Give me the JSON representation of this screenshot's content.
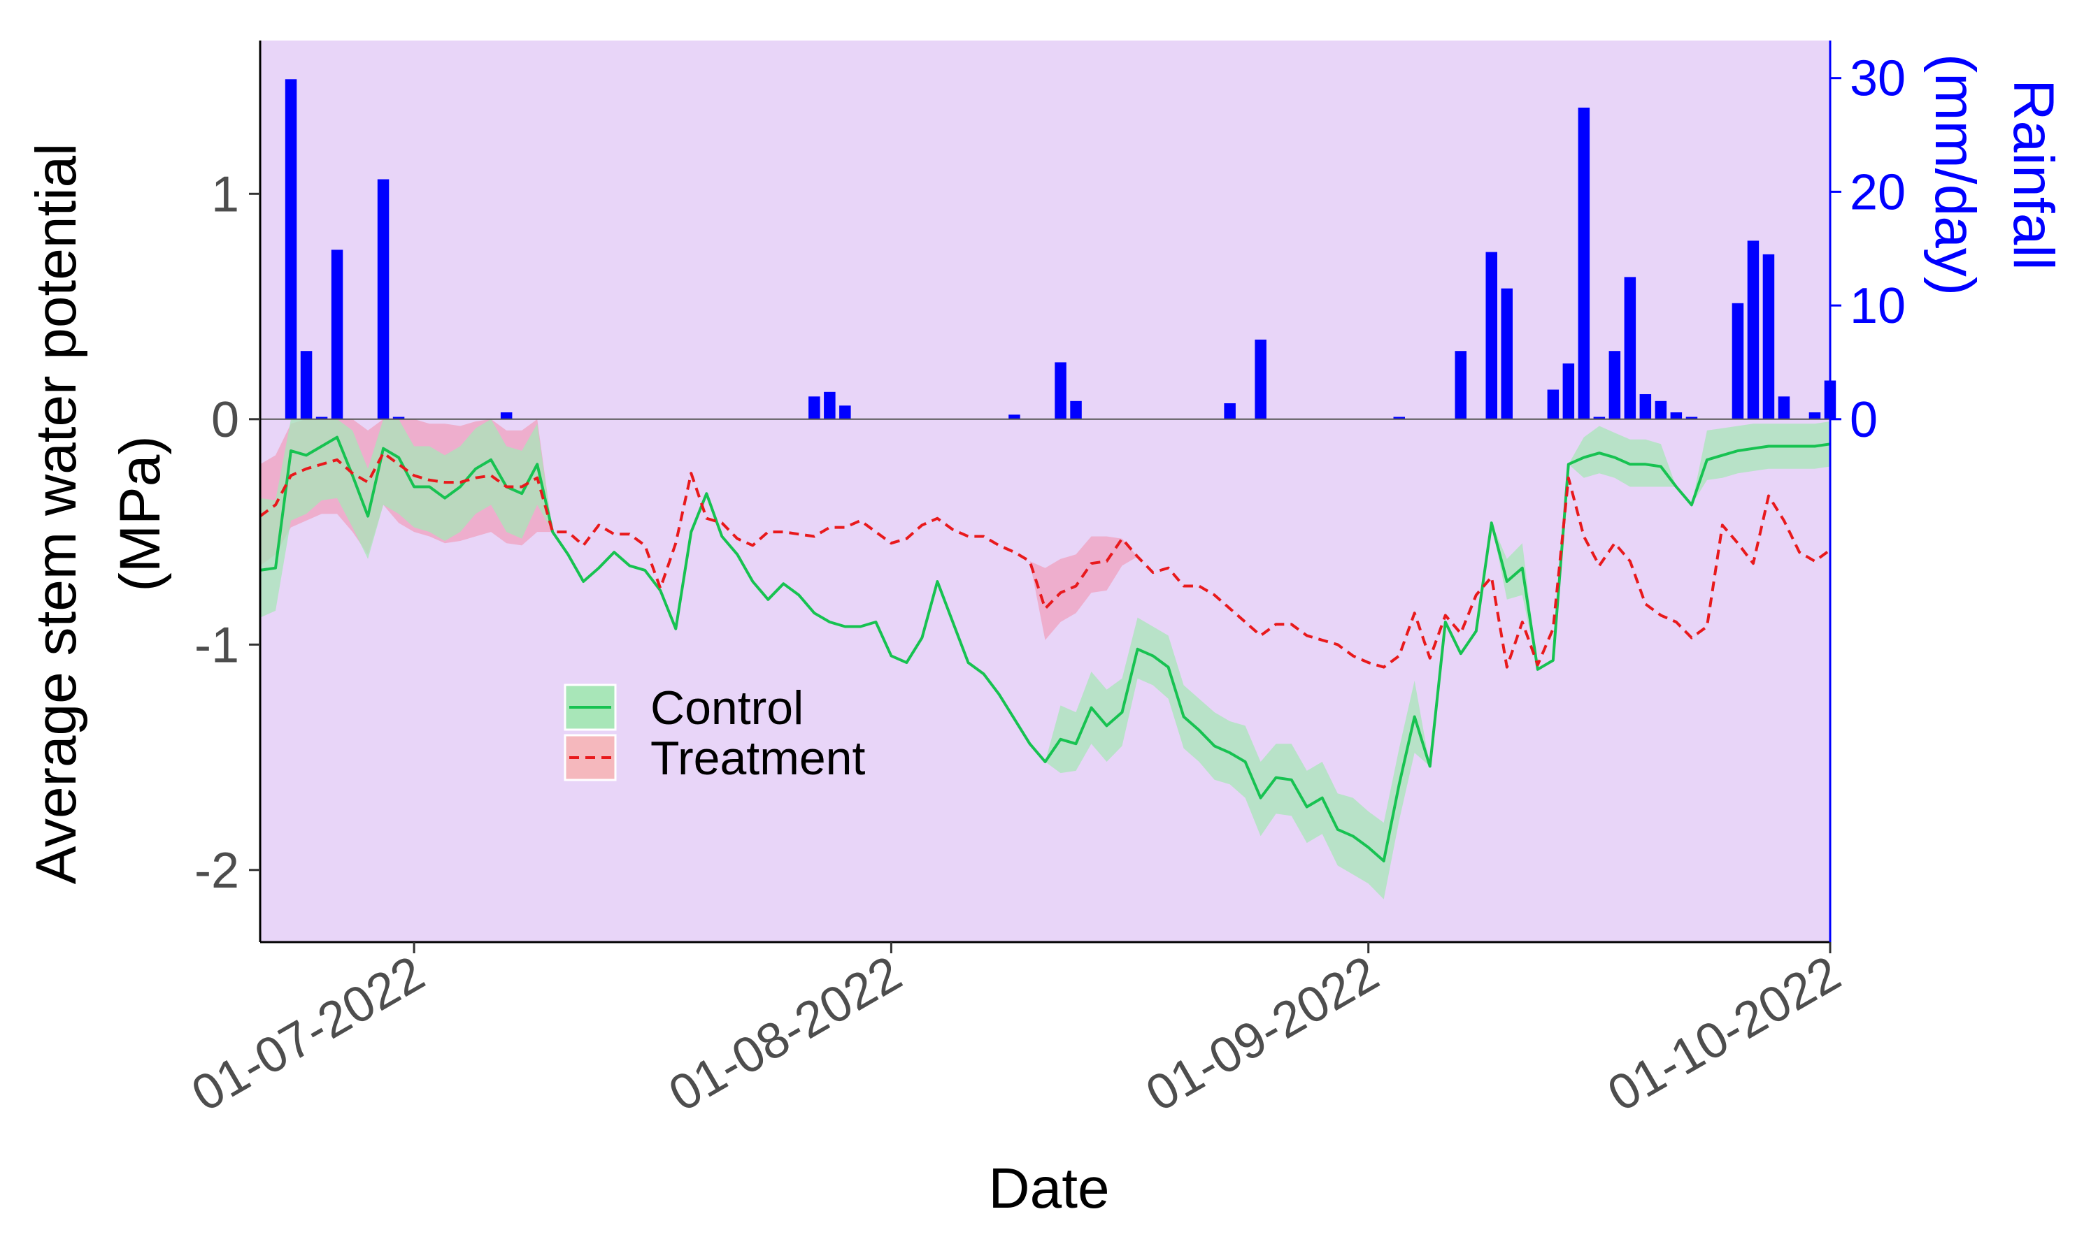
{
  "chart_data": {
    "type": "line",
    "ylabel_lines": [
      "Average stem water potential",
      "(MPa)"
    ],
    "xlabel": "Date",
    "y2label_lines": [
      "Rainfall",
      "(mm/day)"
    ],
    "ylim": [
      -2.32,
      1.68
    ],
    "y2lim": [
      0,
      33.3
    ],
    "xlim": [
      "2022-06-21",
      "2022-10-01"
    ],
    "yticks": [
      1,
      0,
      -1,
      -2
    ],
    "ytick_labels": [
      "1",
      "0",
      "-1",
      "-2"
    ],
    "y2ticks": [
      0,
      10,
      20,
      30
    ],
    "y2tick_labels": [
      "0",
      "10",
      "20",
      "30"
    ],
    "xticks": [
      "2022-07-01",
      "2022-08-01",
      "2022-09-01",
      "2022-10-01"
    ],
    "xtick_labels": [
      "01-07-2022",
      "01-08-2022",
      "01-09-2022",
      "01-10-2022"
    ],
    "grid": false,
    "legend_position": "center-left",
    "colors": {
      "panel_bg": "#e8d5f8",
      "control": "#17c251",
      "control_band": "#a8e6b8",
      "treatment": "#e8191c",
      "treatment_band": "#f294b0",
      "rain": "#0000ff"
    },
    "series": [
      {
        "name": "Control",
        "style": "solid",
        "x": [
          "2022-06-21",
          "2022-06-22",
          "2022-06-23",
          "2022-06-24",
          "2022-06-25",
          "2022-06-26",
          "2022-06-27",
          "2022-06-28",
          "2022-06-29",
          "2022-06-30",
          "2022-07-01",
          "2022-07-02",
          "2022-07-03",
          "2022-07-04",
          "2022-07-05",
          "2022-07-06",
          "2022-07-07",
          "2022-07-08",
          "2022-07-09",
          "2022-07-10",
          "2022-07-11",
          "2022-07-12",
          "2022-07-13",
          "2022-07-14",
          "2022-07-15",
          "2022-07-16",
          "2022-07-17",
          "2022-07-18",
          "2022-07-19",
          "2022-07-20",
          "2022-07-21",
          "2022-07-22",
          "2022-07-23",
          "2022-07-24",
          "2022-07-25",
          "2022-07-26",
          "2022-07-27",
          "2022-07-28",
          "2022-07-29",
          "2022-07-30",
          "2022-07-31",
          "2022-08-01",
          "2022-08-02",
          "2022-08-03",
          "2022-08-04",
          "2022-08-05",
          "2022-08-06",
          "2022-08-07",
          "2022-08-08",
          "2022-08-09",
          "2022-08-10",
          "2022-08-11",
          "2022-08-12",
          "2022-08-13",
          "2022-08-14",
          "2022-08-15",
          "2022-08-16",
          "2022-08-17",
          "2022-08-18",
          "2022-08-19",
          "2022-08-20",
          "2022-08-21",
          "2022-08-22",
          "2022-08-23",
          "2022-08-24",
          "2022-08-25",
          "2022-08-26",
          "2022-08-27",
          "2022-08-28",
          "2022-08-29",
          "2022-08-30",
          "2022-08-31",
          "2022-09-01",
          "2022-09-02",
          "2022-09-03",
          "2022-09-04",
          "2022-09-05",
          "2022-09-06",
          "2022-09-07",
          "2022-09-08",
          "2022-09-09",
          "2022-09-10",
          "2022-09-11",
          "2022-09-12",
          "2022-09-13",
          "2022-09-14",
          "2022-09-15",
          "2022-09-16",
          "2022-09-17",
          "2022-09-18",
          "2022-09-19",
          "2022-09-20",
          "2022-09-21",
          "2022-09-22",
          "2022-09-23",
          "2022-09-24",
          "2022-09-25",
          "2022-09-26",
          "2022-09-27",
          "2022-09-28",
          "2022-09-29",
          "2022-09-30",
          "2022-10-01"
        ],
        "values": [
          -0.67,
          -0.66,
          -0.14,
          -0.16,
          -0.12,
          -0.08,
          -0.25,
          -0.43,
          -0.13,
          -0.17,
          -0.3,
          -0.3,
          -0.35,
          -0.3,
          -0.22,
          -0.18,
          -0.3,
          -0.33,
          -0.2,
          -0.5,
          -0.6,
          -0.72,
          -0.66,
          -0.59,
          -0.65,
          -0.67,
          -0.76,
          -0.93,
          -0.5,
          -0.33,
          -0.52,
          -0.6,
          -0.72,
          -0.8,
          -0.73,
          -0.78,
          -0.86,
          -0.9,
          -0.92,
          -0.92,
          -0.9,
          -1.05,
          -1.08,
          -0.97,
          -0.72,
          -0.9,
          -1.08,
          -1.13,
          -1.22,
          -1.33,
          -1.44,
          -1.52,
          -1.42,
          -1.44,
          -1.28,
          -1.36,
          -1.3,
          -1.02,
          -1.05,
          -1.1,
          -1.32,
          -1.38,
          -1.45,
          -1.48,
          -1.52,
          -1.68,
          -1.59,
          -1.6,
          -1.72,
          -1.68,
          -1.82,
          -1.85,
          -1.9,
          -1.96,
          -1.62,
          -1.32,
          -1.54,
          -0.9,
          -1.04,
          -0.94,
          -0.46,
          -0.72,
          -0.66,
          -1.11,
          -1.07,
          -0.2,
          -0.17,
          -0.15,
          -0.17,
          -0.2,
          -0.2,
          -0.21,
          -0.3,
          -0.38,
          -0.18,
          -0.16,
          -0.14,
          -0.13,
          -0.12,
          -0.12,
          -0.12,
          -0.12,
          -0.11
        ],
        "lower": [
          -0.88,
          -0.85,
          -0.45,
          -0.42,
          -0.36,
          -0.35,
          -0.48,
          -0.62,
          -0.38,
          -0.42,
          -0.48,
          -0.5,
          -0.54,
          -0.5,
          -0.42,
          -0.38,
          -0.5,
          -0.53,
          -0.38,
          -0.5,
          -0.6,
          -0.72,
          -0.66,
          -0.59,
          -0.65,
          -0.67,
          -0.76,
          -0.93,
          -0.5,
          -0.33,
          -0.52,
          -0.6,
          -0.72,
          -0.8,
          -0.73,
          -0.78,
          -0.86,
          -0.9,
          -0.92,
          -0.92,
          -0.9,
          -1.05,
          -1.08,
          -0.97,
          -0.72,
          -0.9,
          -1.08,
          -1.13,
          -1.22,
          -1.33,
          -1.44,
          -1.52,
          -1.57,
          -1.56,
          -1.44,
          -1.52,
          -1.45,
          -1.15,
          -1.18,
          -1.24,
          -1.46,
          -1.52,
          -1.6,
          -1.62,
          -1.68,
          -1.85,
          -1.75,
          -1.76,
          -1.88,
          -1.84,
          -1.98,
          -2.02,
          -2.06,
          -2.13,
          -1.78,
          -1.48,
          -1.54,
          -0.9,
          -1.04,
          -0.94,
          -0.46,
          -0.8,
          -0.78,
          -1.11,
          -1.07,
          -0.2,
          -0.26,
          -0.24,
          -0.26,
          -0.3,
          -0.3,
          -0.3,
          -0.3,
          -0.38,
          -0.27,
          -0.26,
          -0.24,
          -0.23,
          -0.22,
          -0.22,
          -0.22,
          -0.22,
          -0.21
        ],
        "upper": [
          -0.35,
          -0.36,
          0.0,
          0.0,
          0.0,
          0.0,
          -0.05,
          -0.22,
          0.0,
          0.0,
          -0.12,
          -0.12,
          -0.16,
          -0.12,
          -0.04,
          0.0,
          -0.12,
          -0.14,
          -0.02,
          -0.5,
          -0.6,
          -0.72,
          -0.66,
          -0.59,
          -0.65,
          -0.67,
          -0.76,
          -0.93,
          -0.5,
          -0.33,
          -0.52,
          -0.6,
          -0.72,
          -0.8,
          -0.73,
          -0.78,
          -0.86,
          -0.9,
          -0.92,
          -0.92,
          -0.9,
          -1.05,
          -1.08,
          -0.97,
          -0.72,
          -0.9,
          -1.08,
          -1.13,
          -1.22,
          -1.33,
          -1.44,
          -1.52,
          -1.27,
          -1.3,
          -1.12,
          -1.2,
          -1.15,
          -0.88,
          -0.92,
          -0.96,
          -1.18,
          -1.24,
          -1.3,
          -1.34,
          -1.36,
          -1.52,
          -1.44,
          -1.44,
          -1.56,
          -1.52,
          -1.66,
          -1.68,
          -1.74,
          -1.79,
          -1.46,
          -1.16,
          -1.54,
          -0.9,
          -1.04,
          -0.94,
          -0.46,
          -0.62,
          -0.55,
          -1.11,
          -1.07,
          -0.2,
          -0.08,
          -0.03,
          -0.06,
          -0.09,
          -0.09,
          -0.11,
          -0.3,
          -0.38,
          -0.05,
          -0.04,
          -0.03,
          -0.02,
          -0.02,
          -0.02,
          -0.02,
          -0.02,
          -0.01
        ]
      },
      {
        "name": "Treatment",
        "style": "dashed",
        "x": [
          "2022-06-21",
          "2022-06-22",
          "2022-06-23",
          "2022-06-24",
          "2022-06-25",
          "2022-06-26",
          "2022-06-27",
          "2022-06-28",
          "2022-06-29",
          "2022-06-30",
          "2022-07-01",
          "2022-07-02",
          "2022-07-03",
          "2022-07-04",
          "2022-07-05",
          "2022-07-06",
          "2022-07-07",
          "2022-07-08",
          "2022-07-09",
          "2022-07-10",
          "2022-07-11",
          "2022-07-12",
          "2022-07-13",
          "2022-07-14",
          "2022-07-15",
          "2022-07-16",
          "2022-07-17",
          "2022-07-18",
          "2022-07-19",
          "2022-07-20",
          "2022-07-21",
          "2022-07-22",
          "2022-07-23",
          "2022-07-24",
          "2022-07-25",
          "2022-07-26",
          "2022-07-27",
          "2022-07-28",
          "2022-07-29",
          "2022-07-30",
          "2022-07-31",
          "2022-08-01",
          "2022-08-02",
          "2022-08-03",
          "2022-08-04",
          "2022-08-05",
          "2022-08-06",
          "2022-08-07",
          "2022-08-08",
          "2022-08-09",
          "2022-08-10",
          "2022-08-11",
          "2022-08-12",
          "2022-08-13",
          "2022-08-14",
          "2022-08-15",
          "2022-08-16",
          "2022-08-17",
          "2022-08-18",
          "2022-08-19",
          "2022-08-20",
          "2022-08-21",
          "2022-08-22",
          "2022-08-23",
          "2022-08-24",
          "2022-08-25",
          "2022-08-26",
          "2022-08-27",
          "2022-08-28",
          "2022-08-29",
          "2022-08-30",
          "2022-08-31",
          "2022-09-01",
          "2022-09-02",
          "2022-09-03",
          "2022-09-04",
          "2022-09-05",
          "2022-09-06",
          "2022-09-07",
          "2022-09-08",
          "2022-09-09",
          "2022-09-10",
          "2022-09-11",
          "2022-09-12",
          "2022-09-13",
          "2022-09-14",
          "2022-09-15",
          "2022-09-16",
          "2022-09-17",
          "2022-09-18",
          "2022-09-19",
          "2022-09-20",
          "2022-09-21",
          "2022-09-22",
          "2022-09-23",
          "2022-09-24",
          "2022-09-25",
          "2022-09-26",
          "2022-09-27",
          "2022-09-28",
          "2022-09-29",
          "2022-09-30",
          "2022-10-01"
        ],
        "values": [
          -0.43,
          -0.38,
          -0.25,
          -0.22,
          -0.2,
          -0.18,
          -0.24,
          -0.28,
          -0.15,
          -0.2,
          -0.25,
          -0.27,
          -0.28,
          -0.28,
          -0.26,
          -0.25,
          -0.3,
          -0.3,
          -0.26,
          -0.5,
          -0.5,
          -0.56,
          -0.47,
          -0.51,
          -0.51,
          -0.56,
          -0.75,
          -0.55,
          -0.24,
          -0.44,
          -0.46,
          -0.53,
          -0.56,
          -0.5,
          -0.5,
          -0.51,
          -0.52,
          -0.48,
          -0.48,
          -0.45,
          -0.5,
          -0.55,
          -0.53,
          -0.47,
          -0.44,
          -0.49,
          -0.52,
          -0.52,
          -0.56,
          -0.59,
          -0.63,
          -0.84,
          -0.77,
          -0.74,
          -0.64,
          -0.63,
          -0.53,
          -0.61,
          -0.68,
          -0.66,
          -0.74,
          -0.74,
          -0.78,
          -0.84,
          -0.9,
          -0.96,
          -0.91,
          -0.91,
          -0.96,
          -0.98,
          -1.0,
          -1.05,
          -1.08,
          -1.1,
          -1.05,
          -0.86,
          -1.06,
          -0.87,
          -0.95,
          -0.78,
          -0.7,
          -1.1,
          -0.9,
          -1.09,
          -0.93,
          -0.26,
          -0.52,
          -0.65,
          -0.55,
          -0.63,
          -0.82,
          -0.87,
          -0.9,
          -0.97,
          -0.92,
          -0.47,
          -0.55,
          -0.64,
          -0.34,
          -0.45,
          -0.59,
          -0.63,
          -0.58
        ],
        "lower": [
          -0.65,
          -0.6,
          -0.48,
          -0.45,
          -0.42,
          -0.42,
          -0.5,
          -0.6,
          -0.38,
          -0.46,
          -0.5,
          -0.52,
          -0.55,
          -0.54,
          -0.52,
          -0.5,
          -0.55,
          -0.56,
          -0.5,
          -0.5,
          -0.5,
          -0.56,
          -0.47,
          -0.51,
          -0.51,
          -0.56,
          -0.75,
          -0.55,
          -0.24,
          -0.44,
          -0.46,
          -0.53,
          -0.56,
          -0.5,
          -0.5,
          -0.51,
          -0.52,
          -0.48,
          -0.48,
          -0.45,
          -0.5,
          -0.55,
          -0.53,
          -0.47,
          -0.44,
          -0.49,
          -0.52,
          -0.52,
          -0.56,
          -0.59,
          -0.63,
          -0.98,
          -0.9,
          -0.86,
          -0.77,
          -0.76,
          -0.65,
          -0.61,
          -0.68,
          -0.66,
          -0.74,
          -0.74,
          -0.78,
          -0.84,
          -0.9,
          -0.96,
          -0.91,
          -0.91,
          -0.96,
          -0.98,
          -1.0,
          -1.05,
          -1.08,
          -1.1,
          -1.05,
          -0.86,
          -1.06,
          -0.87,
          -0.95,
          -0.78,
          -0.7,
          -1.1,
          -0.9,
          -1.09,
          -0.93,
          -0.26,
          -0.52,
          -0.65,
          -0.55,
          -0.63,
          -0.82,
          -0.87,
          -0.9,
          -0.97,
          -0.92,
          -0.47,
          -0.55,
          -0.64,
          -0.34,
          -0.45,
          -0.59,
          -0.63,
          -0.58
        ],
        "upper": [
          -0.2,
          -0.16,
          -0.02,
          0.0,
          0.0,
          0.0,
          0.0,
          -0.05,
          0.0,
          0.0,
          0.0,
          -0.02,
          -0.02,
          -0.03,
          -0.01,
          0.0,
          -0.05,
          -0.05,
          0.0,
          -0.5,
          -0.5,
          -0.56,
          -0.47,
          -0.51,
          -0.51,
          -0.56,
          -0.75,
          -0.55,
          -0.24,
          -0.44,
          -0.46,
          -0.53,
          -0.56,
          -0.5,
          -0.5,
          -0.51,
          -0.52,
          -0.48,
          -0.48,
          -0.45,
          -0.5,
          -0.55,
          -0.53,
          -0.47,
          -0.44,
          -0.49,
          -0.52,
          -0.52,
          -0.56,
          -0.59,
          -0.63,
          -0.66,
          -0.62,
          -0.6,
          -0.52,
          -0.52,
          -0.53,
          -0.61,
          -0.68,
          -0.66,
          -0.74,
          -0.74,
          -0.78,
          -0.84,
          -0.9,
          -0.96,
          -0.91,
          -0.91,
          -0.96,
          -0.98,
          -1.0,
          -1.05,
          -1.08,
          -1.1,
          -1.05,
          -0.86,
          -1.06,
          -0.87,
          -0.95,
          -0.78,
          -0.7,
          -1.1,
          -0.9,
          -1.09,
          -0.93,
          -0.26,
          -0.52,
          -0.65,
          -0.55,
          -0.63,
          -0.82,
          -0.87,
          -0.9,
          -0.97,
          -0.92,
          -0.47,
          -0.55,
          -0.64,
          -0.34,
          -0.45,
          -0.59,
          -0.63,
          -0.58
        ]
      }
    ],
    "rainfall": {
      "name": "Rainfall",
      "x": [
        "2022-06-23",
        "2022-06-24",
        "2022-06-25",
        "2022-06-26",
        "2022-06-29",
        "2022-06-30",
        "2022-07-07",
        "2022-07-27",
        "2022-07-28",
        "2022-07-29",
        "2022-08-09",
        "2022-08-12",
        "2022-08-13",
        "2022-08-23",
        "2022-08-25",
        "2022-09-03",
        "2022-09-07",
        "2022-09-09",
        "2022-09-10",
        "2022-09-13",
        "2022-09-14",
        "2022-09-15",
        "2022-09-16",
        "2022-09-17",
        "2022-09-18",
        "2022-09-19",
        "2022-09-20",
        "2022-09-21",
        "2022-09-22",
        "2022-09-25",
        "2022-09-26",
        "2022-09-27",
        "2022-09-28",
        "2022-09-30",
        "2022-10-01"
      ],
      "values": [
        29.9,
        6.0,
        0.2,
        14.9,
        21.1,
        0.2,
        0.6,
        2.0,
        2.4,
        1.2,
        0.4,
        5.0,
        1.6,
        1.4,
        7.0,
        0.2,
        6.0,
        14.7,
        11.5,
        2.6,
        4.9,
        27.4,
        0.2,
        6.0,
        12.5,
        2.2,
        1.6,
        0.6,
        0.2,
        10.2,
        15.7,
        14.5,
        2.0,
        0.6,
        3.4
      ]
    },
    "legend": [
      {
        "label": "Control"
      },
      {
        "label": "Treatment"
      }
    ]
  }
}
